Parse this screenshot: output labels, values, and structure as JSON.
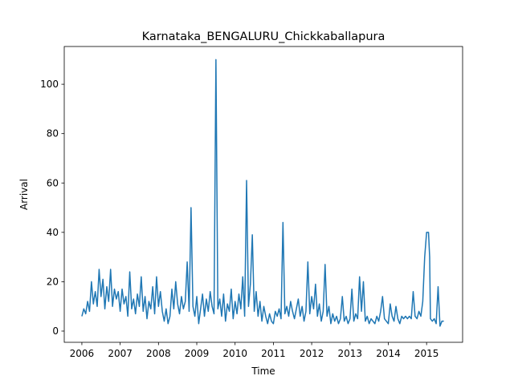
{
  "chart_data": {
    "type": "line",
    "title": "Karnataka_BENGALURU_Chickkaballapura",
    "xlabel": "Time",
    "ylabel": "Arrival",
    "x": [
      2006,
      2006.05,
      2006.1,
      2006.15,
      2006.2,
      2006.25,
      2006.3,
      2006.35,
      2006.4,
      2006.45,
      2006.5,
      2006.55,
      2006.6,
      2006.65,
      2006.7,
      2006.75,
      2006.8,
      2006.85,
      2006.9,
      2006.95,
      2007,
      2007.05,
      2007.1,
      2007.15,
      2007.2,
      2007.25,
      2007.3,
      2007.35,
      2007.4,
      2007.45,
      2007.5,
      2007.55,
      2007.6,
      2007.65,
      2007.7,
      2007.75,
      2007.8,
      2007.85,
      2007.9,
      2007.95,
      2008,
      2008.05,
      2008.1,
      2008.15,
      2008.2,
      2008.25,
      2008.3,
      2008.35,
      2008.4,
      2008.45,
      2008.5,
      2008.55,
      2008.6,
      2008.65,
      2008.7,
      2008.75,
      2008.8,
      2008.85,
      2008.9,
      2008.95,
      2009,
      2009.05,
      2009.1,
      2009.15,
      2009.2,
      2009.25,
      2009.3,
      2009.35,
      2009.4,
      2009.45,
      2009.5,
      2009.55,
      2009.6,
      2009.65,
      2009.7,
      2009.75,
      2009.8,
      2009.85,
      2009.9,
      2009.95,
      2010,
      2010.05,
      2010.1,
      2010.15,
      2010.2,
      2010.25,
      2010.3,
      2010.35,
      2010.4,
      2010.45,
      2010.5,
      2010.55,
      2010.6,
      2010.65,
      2010.7,
      2010.75,
      2010.8,
      2010.85,
      2010.9,
      2010.95,
      2011,
      2011.05,
      2011.1,
      2011.15,
      2011.2,
      2011.25,
      2011.3,
      2011.35,
      2011.4,
      2011.45,
      2011.5,
      2011.55,
      2011.6,
      2011.65,
      2011.7,
      2011.75,
      2011.8,
      2011.85,
      2011.9,
      2011.95,
      2012,
      2012.05,
      2012.1,
      2012.15,
      2012.2,
      2012.25,
      2012.3,
      2012.35,
      2012.4,
      2012.45,
      2012.5,
      2012.55,
      2012.6,
      2012.65,
      2012.7,
      2012.75,
      2012.8,
      2012.85,
      2012.9,
      2012.95,
      2013,
      2013.05,
      2013.1,
      2013.15,
      2013.2,
      2013.25,
      2013.3,
      2013.35,
      2013.4,
      2013.45,
      2013.5,
      2013.55,
      2013.6,
      2013.65,
      2013.7,
      2013.75,
      2013.8,
      2013.85,
      2013.9,
      2013.95,
      2014,
      2014.05,
      2014.1,
      2014.15,
      2014.2,
      2014.25,
      2014.3,
      2014.35,
      2014.4,
      2014.45,
      2014.5,
      2014.55,
      2014.6,
      2014.65,
      2014.7,
      2014.75,
      2014.8,
      2014.85,
      2014.9,
      2014.95,
      2015,
      2015.05,
      2015.08,
      2015.1,
      2015.15,
      2015.2,
      2015.25,
      2015.3,
      2015.35,
      2015.4,
      2015.45
    ],
    "series": [
      {
        "color": "#1f77b4",
        "values": [
          6,
          9,
          7,
          12,
          8,
          20,
          11,
          16,
          10,
          25,
          14,
          21,
          9,
          18,
          12,
          25,
          10,
          17,
          13,
          16,
          8,
          17,
          11,
          14,
          6,
          24,
          9,
          13,
          7,
          15,
          10,
          22,
          8,
          14,
          5,
          12,
          9,
          18,
          7,
          22,
          10,
          16,
          8,
          4,
          9,
          3,
          6,
          17,
          9,
          20,
          11,
          7,
          14,
          9,
          12,
          28,
          8,
          50,
          10,
          6,
          14,
          3,
          9,
          15,
          6,
          13,
          8,
          16,
          10,
          7,
          110,
          9,
          13,
          6,
          15,
          4,
          11,
          8,
          17,
          5,
          12,
          7,
          15,
          9,
          22,
          6,
          61,
          10,
          19,
          39,
          8,
          16,
          6,
          12,
          4,
          10,
          6,
          3,
          7,
          4,
          3,
          8,
          6,
          9,
          5,
          44,
          7,
          10,
          6,
          12,
          8,
          5,
          9,
          13,
          6,
          10,
          4,
          8,
          28,
          7,
          14,
          9,
          19,
          6,
          11,
          4,
          8,
          27,
          6,
          10,
          3,
          7,
          4,
          6,
          3,
          5,
          14,
          4,
          6,
          3,
          5,
          17,
          4,
          7,
          5,
          22,
          8,
          20,
          4,
          6,
          3,
          5,
          4,
          3,
          6,
          4,
          8,
          14,
          5,
          4,
          3,
          11,
          6,
          4,
          10,
          5,
          3,
          6,
          5,
          6,
          5,
          6,
          5,
          16,
          6,
          5,
          8,
          6,
          12,
          30,
          40,
          40,
          30,
          5,
          4,
          5,
          3,
          18,
          2,
          4,
          4
        ]
      }
    ],
    "xlim": [
      2005.54,
      2015.94
    ],
    "xticks": [
      2006,
      2007,
      2008,
      2009,
      2010,
      2011,
      2012,
      2013,
      2014,
      2015
    ],
    "ylim": [
      -4.55,
      115.3
    ],
    "yticks": [
      0,
      20,
      40,
      60,
      80,
      100
    ],
    "grid": false
  }
}
